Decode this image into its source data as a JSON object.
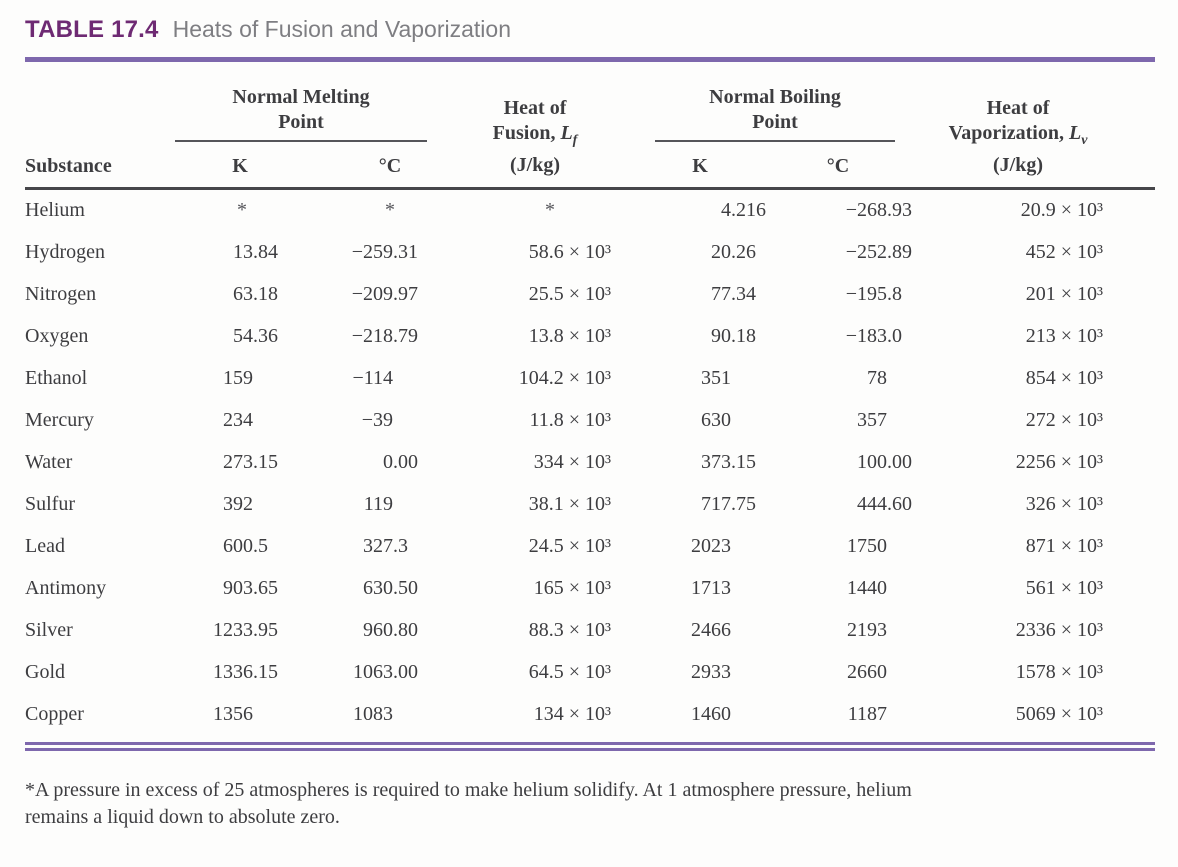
{
  "title": {
    "label": "TABLE 17.4",
    "text": "Heats of Fusion and Vaporization"
  },
  "header": {
    "substance": "Substance",
    "melting": {
      "line1": "Normal Melting",
      "line2": "Point",
      "k": "K",
      "c": "°C"
    },
    "fusion": {
      "line1": "Heat of",
      "line2": "Fusion,",
      "symbol": "L",
      "sub": "f",
      "line3": "(J/kg)"
    },
    "boiling": {
      "line1": "Normal Boiling",
      "line2": "Point",
      "k": "K",
      "c": "°C"
    },
    "vaporization": {
      "line1": "Heat of",
      "line2": "Vaporization,",
      "symbol": "L",
      "sub": "v",
      "line3": "(J/kg)"
    }
  },
  "rows": [
    {
      "substance": "Helium",
      "melt_k": "*",
      "melt_c": "*",
      "fusion": "*",
      "boil_k": "4.216",
      "boil_c": "−268.93",
      "vap": "20.9 × 10³"
    },
    {
      "substance": "Hydrogen",
      "melt_k": "13.84",
      "melt_c": "−259.31",
      "fusion": "58.6 × 10³",
      "boil_k": "20.26",
      "boil_c": "−252.89",
      "vap": "452 × 10³"
    },
    {
      "substance": "Nitrogen",
      "melt_k": "63.18",
      "melt_c": "−209.97",
      "fusion": "25.5 × 10³",
      "boil_k": "77.34",
      "boil_c": "−195.8",
      "vap": "201 × 10³"
    },
    {
      "substance": "Oxygen",
      "melt_k": "54.36",
      "melt_c": "−218.79",
      "fusion": "13.8 × 10³",
      "boil_k": "90.18",
      "boil_c": "−183.0",
      "vap": "213 × 10³"
    },
    {
      "substance": "Ethanol",
      "melt_k": "159",
      "melt_c": "−114",
      "fusion": "104.2 × 10³",
      "boil_k": "351",
      "boil_c": "78",
      "vap": "854 × 10³"
    },
    {
      "substance": "Mercury",
      "melt_k": "234",
      "melt_c": "−39",
      "fusion": "11.8 × 10³",
      "boil_k": "630",
      "boil_c": "357",
      "vap": "272 × 10³"
    },
    {
      "substance": "Water",
      "melt_k": "273.15",
      "melt_c": "0.00",
      "fusion": "334 × 10³",
      "boil_k": "373.15",
      "boil_c": "100.00",
      "vap": "2256 × 10³"
    },
    {
      "substance": "Sulfur",
      "melt_k": "392",
      "melt_c": "119",
      "fusion": "38.1 × 10³",
      "boil_k": "717.75",
      "boil_c": "444.60",
      "vap": "326 × 10³"
    },
    {
      "substance": "Lead",
      "melt_k": "600.5",
      "melt_c": "327.3",
      "fusion": "24.5 × 10³",
      "boil_k": "2023",
      "boil_c": "1750",
      "vap": "871 × 10³"
    },
    {
      "substance": "Antimony",
      "melt_k": "903.65",
      "melt_c": "630.50",
      "fusion": "165 × 10³",
      "boil_k": "1713",
      "boil_c": "1440",
      "vap": "561 × 10³"
    },
    {
      "substance": "Silver",
      "melt_k": "1233.95",
      "melt_c": "960.80",
      "fusion": "88.3 × 10³",
      "boil_k": "2466",
      "boil_c": "2193",
      "vap": "2336 × 10³"
    },
    {
      "substance": "Gold",
      "melt_k": "1336.15",
      "melt_c": "1063.00",
      "fusion": "64.5 × 10³",
      "boil_k": "2933",
      "boil_c": "2660",
      "vap": "1578 × 10³"
    },
    {
      "substance": "Copper",
      "melt_k": "1356",
      "melt_c": "1083",
      "fusion": "134 × 10³",
      "boil_k": "1460",
      "boil_c": "1187",
      "vap": "5069 × 10³"
    }
  ],
  "footnote": {
    "line1": "*A pressure in excess of 25 atmospheres is required to make helium solidify. At 1 atmosphere pressure, helium",
    "line2": "remains a liquid down to absolute zero."
  },
  "colors": {
    "accent_purple": "#6e2a73",
    "rule_purple": "#7e68ad",
    "subtitle_gray": "#7e7e82",
    "text": "#3d3d40"
  }
}
